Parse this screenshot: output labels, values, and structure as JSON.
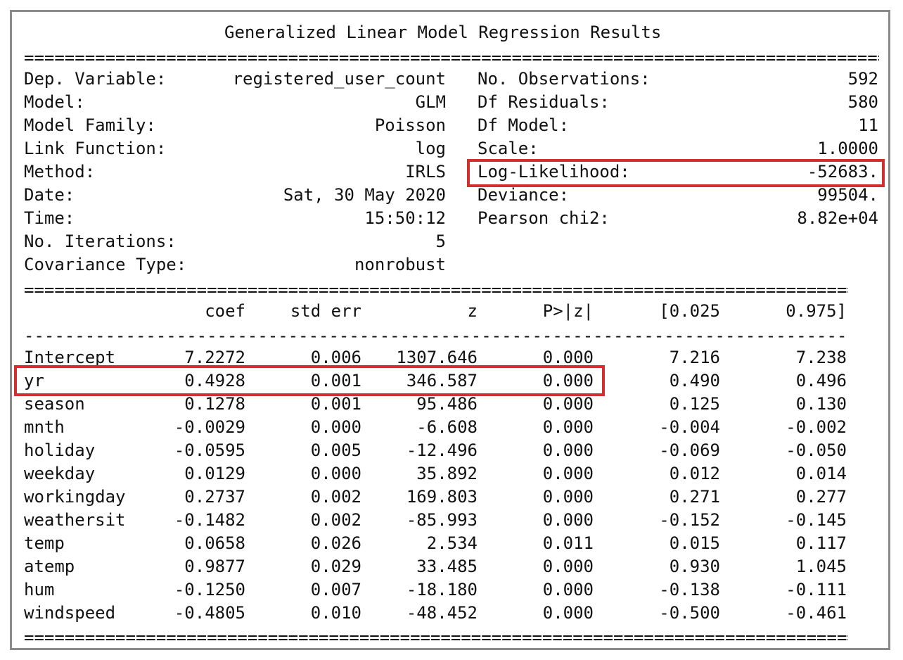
{
  "title": "Generalized Linear Model Regression Results",
  "separator": "==================================================================================================================================================================",
  "dashes": "----------------------------------------------------------------------------------------------------------------------------------------------------------------",
  "summary_left": [
    {
      "label": "Dep. Variable:",
      "value": "registered_user_count"
    },
    {
      "label": "Model:",
      "value": "GLM"
    },
    {
      "label": "Model Family:",
      "value": "Poisson"
    },
    {
      "label": "Link Function:",
      "value": "log"
    },
    {
      "label": "Method:",
      "value": "IRLS"
    },
    {
      "label": "Date:",
      "value": "Sat, 30 May 2020"
    },
    {
      "label": "Time:",
      "value": "15:50:12"
    },
    {
      "label": "No. Iterations:",
      "value": "5"
    },
    {
      "label": "Covariance Type:",
      "value": "nonrobust"
    }
  ],
  "summary_right": [
    {
      "label": "No. Observations:",
      "value": "592"
    },
    {
      "label": "Df Residuals:",
      "value": "580"
    },
    {
      "label": "Df Model:",
      "value": "11"
    },
    {
      "label": "Scale:",
      "value": "1.0000"
    },
    {
      "label": "Log-Likelihood:",
      "value": "-52683."
    },
    {
      "label": "Deviance:",
      "value": "99504."
    },
    {
      "label": "Pearson chi2:",
      "value": "8.82e+04"
    }
  ],
  "coef_headers": [
    "coef",
    "std err",
    "z",
    "P>|z|",
    "[0.025",
    "0.975]"
  ],
  "coef_rows": [
    {
      "name": "Intercept",
      "vals": [
        "7.2272",
        "0.006",
        "1307.646",
        "0.000",
        "7.216",
        "7.238"
      ]
    },
    {
      "name": "yr",
      "vals": [
        "0.4928",
        "0.001",
        "346.587",
        "0.000",
        "0.490",
        "0.496"
      ]
    },
    {
      "name": "season",
      "vals": [
        "0.1278",
        "0.001",
        "95.486",
        "0.000",
        "0.125",
        "0.130"
      ]
    },
    {
      "name": "mnth",
      "vals": [
        "-0.0029",
        "0.000",
        "-6.608",
        "0.000",
        "-0.004",
        "-0.002"
      ]
    },
    {
      "name": "holiday",
      "vals": [
        "-0.0595",
        "0.005",
        "-12.496",
        "0.000",
        "-0.069",
        "-0.050"
      ]
    },
    {
      "name": "weekday",
      "vals": [
        "0.0129",
        "0.000",
        "35.892",
        "0.000",
        "0.012",
        "0.014"
      ]
    },
    {
      "name": "workingday",
      "vals": [
        "0.2737",
        "0.002",
        "169.803",
        "0.000",
        "0.271",
        "0.277"
      ]
    },
    {
      "name": "weathersit",
      "vals": [
        "-0.1482",
        "0.002",
        "-85.993",
        "0.000",
        "-0.152",
        "-0.145"
      ]
    },
    {
      "name": "temp",
      "vals": [
        "0.0658",
        "0.026",
        "2.534",
        "0.011",
        "0.015",
        "0.117"
      ]
    },
    {
      "name": "atemp",
      "vals": [
        "0.9877",
        "0.029",
        "33.485",
        "0.000",
        "0.930",
        "1.045"
      ]
    },
    {
      "name": "hum",
      "vals": [
        "-0.1250",
        "0.007",
        "-18.180",
        "0.000",
        "-0.138",
        "-0.111"
      ]
    },
    {
      "name": "windspeed",
      "vals": [
        "-0.4805",
        "0.010",
        "-48.452",
        "0.000",
        "-0.500",
        "-0.461"
      ]
    }
  ],
  "highlight_color": "#d32f2f"
}
